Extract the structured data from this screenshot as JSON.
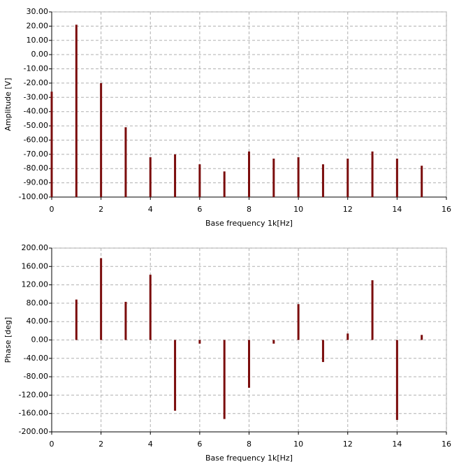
{
  "chart_data": [
    {
      "type": "stem",
      "ylabel": "Amplitude [V]",
      "xlabel": "Base frequency 1k[Hz]",
      "color": "#7b0d0d",
      "grid": true,
      "baseline": -100,
      "x": [
        0,
        1,
        2,
        3,
        4,
        5,
        6,
        7,
        8,
        9,
        10,
        11,
        12,
        13,
        14,
        15
      ],
      "values": [
        -26,
        21,
        -20,
        -51,
        -72,
        -70,
        -77,
        -82,
        -68,
        -73,
        -72,
        -77,
        -73,
        -68,
        -73,
        -78
      ],
      "xlim": [
        0,
        16
      ],
      "xticks": [
        0,
        2,
        4,
        6,
        8,
        10,
        12,
        14,
        16
      ],
      "ylim": [
        -100,
        30
      ],
      "yticks": [
        {
          "value": 30,
          "label": "30.00"
        },
        {
          "value": 20,
          "label": "20.00"
        },
        {
          "value": 10,
          "label": "10.00"
        },
        {
          "value": 0,
          "label": "0.00"
        },
        {
          "value": -10,
          "label": "-10.00"
        },
        {
          "value": -20,
          "label": "-20.00"
        },
        {
          "value": -30,
          "label": "-30.00"
        },
        {
          "value": -40,
          "label": "-40.00"
        },
        {
          "value": -50,
          "label": "-50.00"
        },
        {
          "value": -60,
          "label": "-60.00"
        },
        {
          "value": -70,
          "label": "-70.00"
        },
        {
          "value": -80,
          "label": "-80.00"
        },
        {
          "value": -90,
          "label": "-90.00"
        },
        {
          "value": -100,
          "label": "-100.00"
        }
      ]
    },
    {
      "type": "stem",
      "ylabel": "Phase [deg]",
      "xlabel": "Base frequency 1k[Hz]",
      "color": "#7b0d0d",
      "grid": true,
      "baseline": 0,
      "x": [
        1,
        2,
        3,
        4,
        5,
        6,
        7,
        8,
        9,
        10,
        11,
        12,
        13,
        14,
        15
      ],
      "values": [
        88,
        178,
        83,
        142,
        -154,
        -8,
        -172,
        -104,
        -8,
        78,
        -48,
        14,
        130,
        -174,
        11
      ],
      "xlim": [
        0,
        16
      ],
      "xticks": [
        0,
        2,
        4,
        6,
        8,
        10,
        12,
        14,
        16
      ],
      "ylim": [
        -200,
        200
      ],
      "yticks": [
        {
          "value": 200,
          "label": "200.00"
        },
        {
          "value": 160,
          "label": "160.00"
        },
        {
          "value": 120,
          "label": "120.00"
        },
        {
          "value": 80,
          "label": "80.00"
        },
        {
          "value": 40,
          "label": "40.00"
        },
        {
          "value": 0,
          "label": "0.00"
        },
        {
          "value": -40,
          "label": "-40.00"
        },
        {
          "value": -80,
          "label": "-80.00"
        },
        {
          "value": -120,
          "label": "-120.00"
        },
        {
          "value": -160,
          "label": "-160.00"
        },
        {
          "value": -200,
          "label": "-200.00"
        }
      ]
    }
  ]
}
